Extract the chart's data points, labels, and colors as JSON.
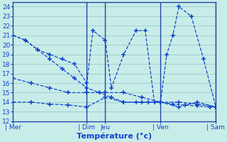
{
  "xlabel": "Température (°c)",
  "background_color": "#c8ece8",
  "grid_color": "#99cccc",
  "line_color": "#1144cc",
  "axis_border_color": "#2244aa",
  "ylim": [
    12,
    24.5
  ],
  "ytick_min": 12,
  "ytick_max": 24,
  "xlim": [
    0,
    33
  ],
  "day_labels": [
    "| Mer",
    "| Dim",
    "Jeu",
    "| Ven",
    "| Sam"
  ],
  "day_positions": [
    0,
    12,
    15,
    24,
    33
  ],
  "vline_positions": [
    12,
    15,
    24,
    33
  ],
  "series": [
    {
      "x": [
        0,
        2,
        4,
        6,
        8,
        10,
        12,
        13,
        15,
        16,
        18,
        20,
        21.5,
        23,
        24,
        25,
        26,
        27,
        29,
        31,
        33
      ],
      "y": [
        21,
        20.5,
        19.5,
        19,
        18.5,
        18,
        16,
        21.5,
        20.5,
        15.5,
        19,
        21.5,
        21.5,
        14,
        14,
        19,
        21,
        24,
        23,
        18.5,
        13.5
      ]
    },
    {
      "x": [
        0,
        2,
        4,
        6,
        8,
        10,
        12,
        14,
        16,
        18,
        20,
        22,
        24,
        26,
        28,
        30,
        32,
        33
      ],
      "y": [
        21,
        20.5,
        19.5,
        18.5,
        17.5,
        16.5,
        15.5,
        15,
        14.5,
        14,
        14,
        14,
        14,
        13.8,
        13.7,
        13.6,
        13.5,
        13.5
      ]
    },
    {
      "x": [
        0,
        3,
        6,
        9,
        12,
        15,
        18,
        21,
        24,
        27,
        30,
        33
      ],
      "y": [
        16.5,
        16,
        15.5,
        15,
        15,
        15,
        15,
        14.5,
        14,
        14,
        13.8,
        13.5
      ]
    },
    {
      "x": [
        0,
        3,
        6,
        9,
        12,
        15,
        18,
        21,
        24,
        27,
        30,
        33
      ],
      "y": [
        14,
        14,
        13.8,
        13.7,
        13.5,
        14.5,
        14,
        14,
        14,
        13.5,
        14,
        13.5
      ]
    }
  ]
}
